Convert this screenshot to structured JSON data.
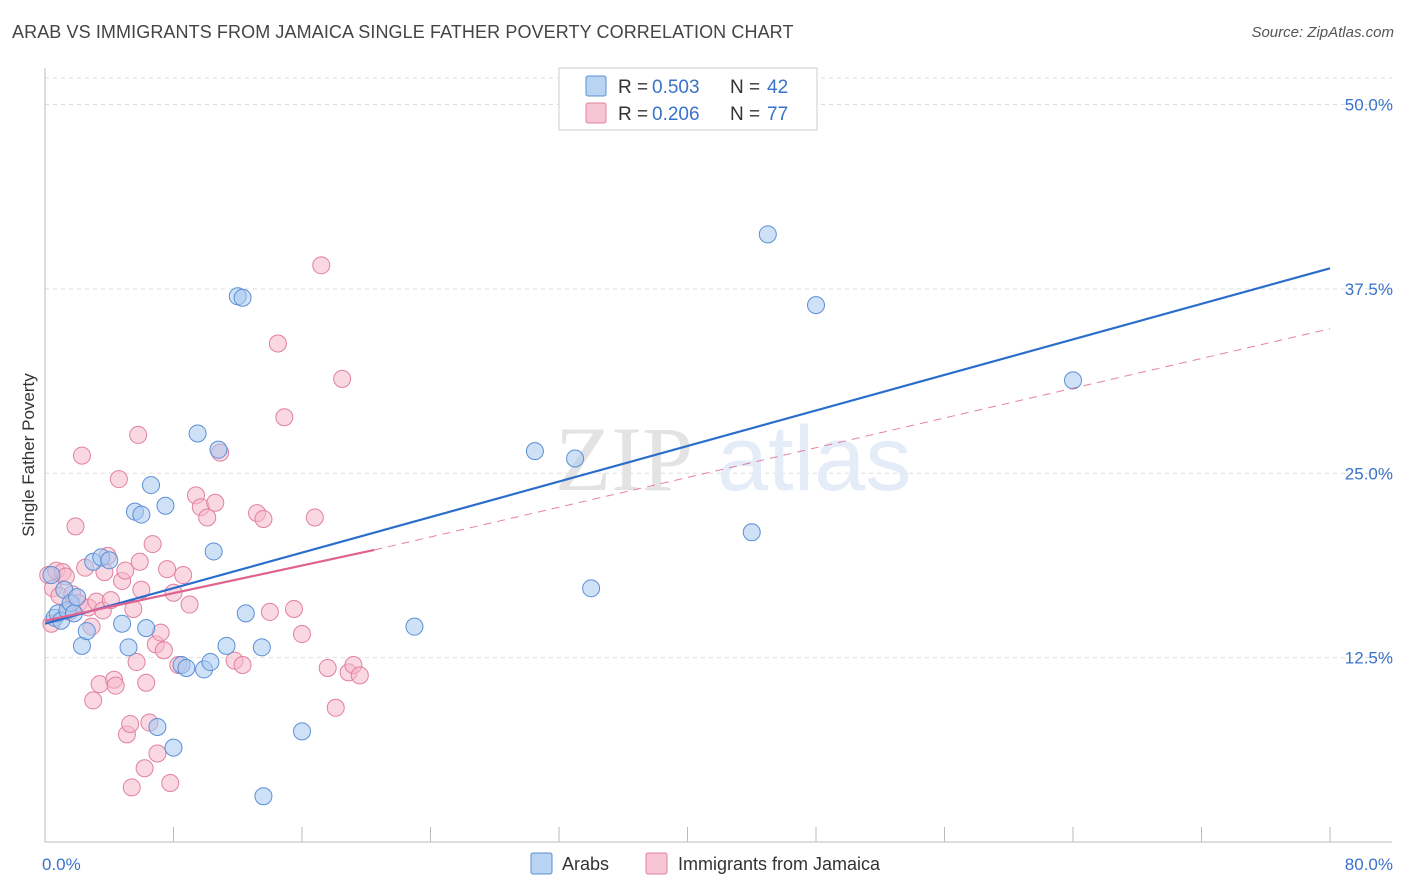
{
  "title": "ARAB VS IMMIGRANTS FROM JAMAICA SINGLE FATHER POVERTY CORRELATION CHART",
  "source": "Source: ZipAtlas.com",
  "watermark": {
    "zip": "ZIP",
    "atlas": "atlas"
  },
  "colors": {
    "arabs_fill": "#a8c8f0",
    "arabs_stroke": "#5b8fd6",
    "arabs_line": "#2a6dcb",
    "jamaica_fill": "#f5b8cb",
    "jamaica_stroke": "#e2809f",
    "jamaica_line": "#e0628f",
    "grid": "#dddddd",
    "tick_text": "#3a72c9"
  },
  "legend": {
    "rows": [
      {
        "r_label": "R = ",
        "r_value": "0.503",
        "n_label": "N = ",
        "n_value": "42"
      },
      {
        "r_label": "R = ",
        "r_value": "0.206",
        "n_label": "N = ",
        "n_value": "77"
      }
    ]
  },
  "chart_data": {
    "type": "scatter",
    "title": "ARAB VS IMMIGRANTS FROM JAMAICA SINGLE FATHER POVERTY CORRELATION CHART",
    "ylabel": "Single Father Poverty",
    "xlabel": "",
    "xlim": [
      0,
      80
    ],
    "ylim": [
      0,
      50
    ],
    "x_tick_labels": [
      {
        "value": 0,
        "label": "0.0%"
      },
      {
        "value": 80,
        "label": "80.0%"
      }
    ],
    "y_tick_labels": [
      {
        "value": 12.5,
        "label": "12.5%"
      },
      {
        "value": 25,
        "label": "25.0%"
      },
      {
        "value": 37.5,
        "label": "37.5%"
      },
      {
        "value": 50,
        "label": "50.0%"
      }
    ],
    "grid": "horizontal dashed",
    "legend_position": "top-center",
    "series": [
      {
        "name": "Arabs",
        "R": 0.503,
        "N": 42,
        "trend": {
          "x": [
            0,
            80
          ],
          "y": [
            14.8,
            38.9
          ]
        },
        "points": [
          [
            0.4,
            18.1
          ],
          [
            0.6,
            15.2
          ],
          [
            0.8,
            15.5
          ],
          [
            1.0,
            15.0
          ],
          [
            1.2,
            17.1
          ],
          [
            1.4,
            15.7
          ],
          [
            1.6,
            16.2
          ],
          [
            1.8,
            15.5
          ],
          [
            2.0,
            16.6
          ],
          [
            2.3,
            13.3
          ],
          [
            2.6,
            14.3
          ],
          [
            3.0,
            19.0
          ],
          [
            3.5,
            19.3
          ],
          [
            4.0,
            19.1
          ],
          [
            4.8,
            14.8
          ],
          [
            5.2,
            13.2
          ],
          [
            5.6,
            22.4
          ],
          [
            6.0,
            22.2
          ],
          [
            6.3,
            14.5
          ],
          [
            6.6,
            24.2
          ],
          [
            7.0,
            7.8
          ],
          [
            7.5,
            22.8
          ],
          [
            8.0,
            6.4
          ],
          [
            8.5,
            12.0
          ],
          [
            8.8,
            11.8
          ],
          [
            9.5,
            27.7
          ],
          [
            9.9,
            11.7
          ],
          [
            10.3,
            12.2
          ],
          [
            10.5,
            19.7
          ],
          [
            10.8,
            26.6
          ],
          [
            11.3,
            13.3
          ],
          [
            12.0,
            37.0
          ],
          [
            12.3,
            36.9
          ],
          [
            12.5,
            15.5
          ],
          [
            13.5,
            13.2
          ],
          [
            13.6,
            3.1
          ],
          [
            16.0,
            7.5
          ],
          [
            23.0,
            14.6
          ],
          [
            30.5,
            26.5
          ],
          [
            33.0,
            26.0
          ],
          [
            34.0,
            17.2
          ],
          [
            44.0,
            21.0
          ],
          [
            45.0,
            41.2
          ],
          [
            48.0,
            36.4
          ],
          [
            64.0,
            31.3
          ]
        ]
      },
      {
        "name": "Immigrants from Jamaica",
        "R": 0.206,
        "N": 77,
        "trend": {
          "x": [
            0,
            20.5
          ],
          "y": [
            15.0,
            19.8
          ]
        },
        "trend_dashed": {
          "x": [
            20.5,
            80
          ],
          "y": [
            19.8,
            34.8
          ]
        },
        "points": [
          [
            0.2,
            18.1
          ],
          [
            0.4,
            14.8
          ],
          [
            0.5,
            17.2
          ],
          [
            0.7,
            18.4
          ],
          [
            0.9,
            16.7
          ],
          [
            1.1,
            18.3
          ],
          [
            1.3,
            18.0
          ],
          [
            1.5,
            15.6
          ],
          [
            1.7,
            16.8
          ],
          [
            1.9,
            21.4
          ],
          [
            2.1,
            16.2
          ],
          [
            2.3,
            26.2
          ],
          [
            2.5,
            18.6
          ],
          [
            2.7,
            15.9
          ],
          [
            2.9,
            14.6
          ],
          [
            3.0,
            9.6
          ],
          [
            3.2,
            16.3
          ],
          [
            3.4,
            10.7
          ],
          [
            3.6,
            15.7
          ],
          [
            3.7,
            18.3
          ],
          [
            3.9,
            19.4
          ],
          [
            4.1,
            16.4
          ],
          [
            4.3,
            11.0
          ],
          [
            4.4,
            10.6
          ],
          [
            4.6,
            24.6
          ],
          [
            4.8,
            17.7
          ],
          [
            5.0,
            18.4
          ],
          [
            5.1,
            7.3
          ],
          [
            5.3,
            8.0
          ],
          [
            5.4,
            3.7
          ],
          [
            5.5,
            15.8
          ],
          [
            5.7,
            12.2
          ],
          [
            5.8,
            27.6
          ],
          [
            5.9,
            19.0
          ],
          [
            6.0,
            17.1
          ],
          [
            6.2,
            5.0
          ],
          [
            6.3,
            10.8
          ],
          [
            6.5,
            8.1
          ],
          [
            6.7,
            20.2
          ],
          [
            6.9,
            13.4
          ],
          [
            7.0,
            6.0
          ],
          [
            7.2,
            14.2
          ],
          [
            7.4,
            13.0
          ],
          [
            7.6,
            18.5
          ],
          [
            7.8,
            4.0
          ],
          [
            8.0,
            16.9
          ],
          [
            8.3,
            12.0
          ],
          [
            8.6,
            18.1
          ],
          [
            9.0,
            16.1
          ],
          [
            9.4,
            23.5
          ],
          [
            9.7,
            22.7
          ],
          [
            10.1,
            22.0
          ],
          [
            10.6,
            23.0
          ],
          [
            10.9,
            26.4
          ],
          [
            11.8,
            12.3
          ],
          [
            12.3,
            12.0
          ],
          [
            13.2,
            22.3
          ],
          [
            13.6,
            21.9
          ],
          [
            14.0,
            15.6
          ],
          [
            14.5,
            33.8
          ],
          [
            14.9,
            28.8
          ],
          [
            15.5,
            15.8
          ],
          [
            16.0,
            14.1
          ],
          [
            16.8,
            22.0
          ],
          [
            17.2,
            39.1
          ],
          [
            17.6,
            11.8
          ],
          [
            18.1,
            9.1
          ],
          [
            18.5,
            31.4
          ],
          [
            18.9,
            11.5
          ],
          [
            19.2,
            12.0
          ],
          [
            19.6,
            11.3
          ]
        ]
      }
    ]
  },
  "bottom_legend": [
    {
      "label": "Arabs"
    },
    {
      "label": "Immigrants from Jamaica"
    }
  ]
}
